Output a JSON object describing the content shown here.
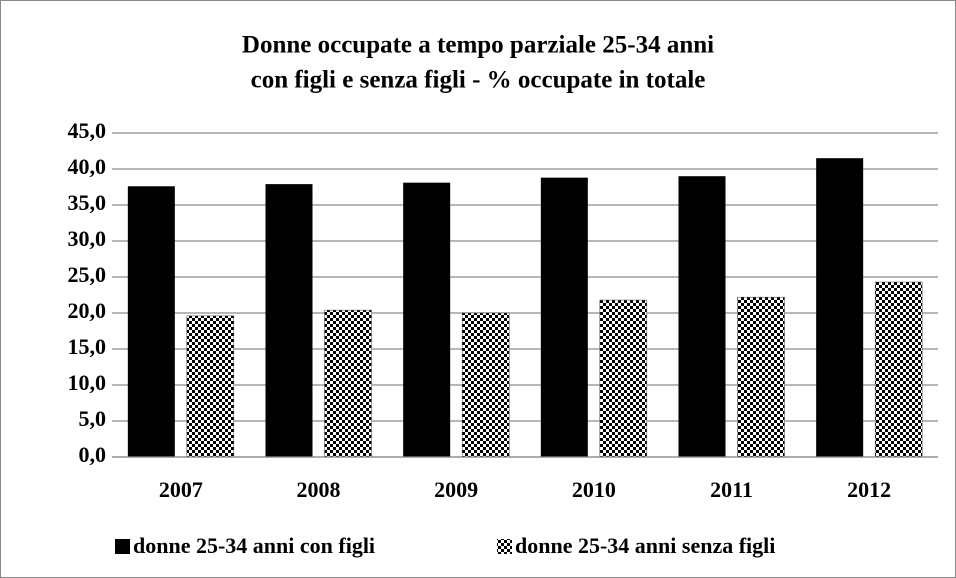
{
  "chart_data": {
    "type": "bar",
    "title": [
      "Donne occupate a tempo parziale 25-34 anni",
      "con figli e senza figli - % occupate in totale"
    ],
    "categories": [
      "2007",
      "2008",
      "2009",
      "2010",
      "2011",
      "2012"
    ],
    "series": [
      {
        "name": "donne 25-34 anni con figli",
        "color": "#000000",
        "values": [
          37.6,
          37.9,
          38.1,
          38.8,
          39.0,
          41.5
        ]
      },
      {
        "name": "donne 25-34 anni senza figli",
        "color": "#000000",
        "pattern": "checkerboard",
        "values": [
          19.6,
          20.4,
          20.0,
          21.8,
          22.2,
          24.3
        ]
      }
    ],
    "ylim": [
      0,
      45
    ],
    "yticks": [
      {
        "value": 0,
        "label": "0,0"
      },
      {
        "value": 5,
        "label": "5,0"
      },
      {
        "value": 10,
        "label": "10,0"
      },
      {
        "value": 15,
        "label": "15,0"
      },
      {
        "value": 20,
        "label": "20,0"
      },
      {
        "value": 25,
        "label": "25,0"
      },
      {
        "value": 30,
        "label": "30,0"
      },
      {
        "value": 35,
        "label": "35,0"
      },
      {
        "value": 40,
        "label": "40,0"
      },
      {
        "value": 45,
        "label": "45,0"
      }
    ],
    "grid": true,
    "legend": "bottom"
  }
}
